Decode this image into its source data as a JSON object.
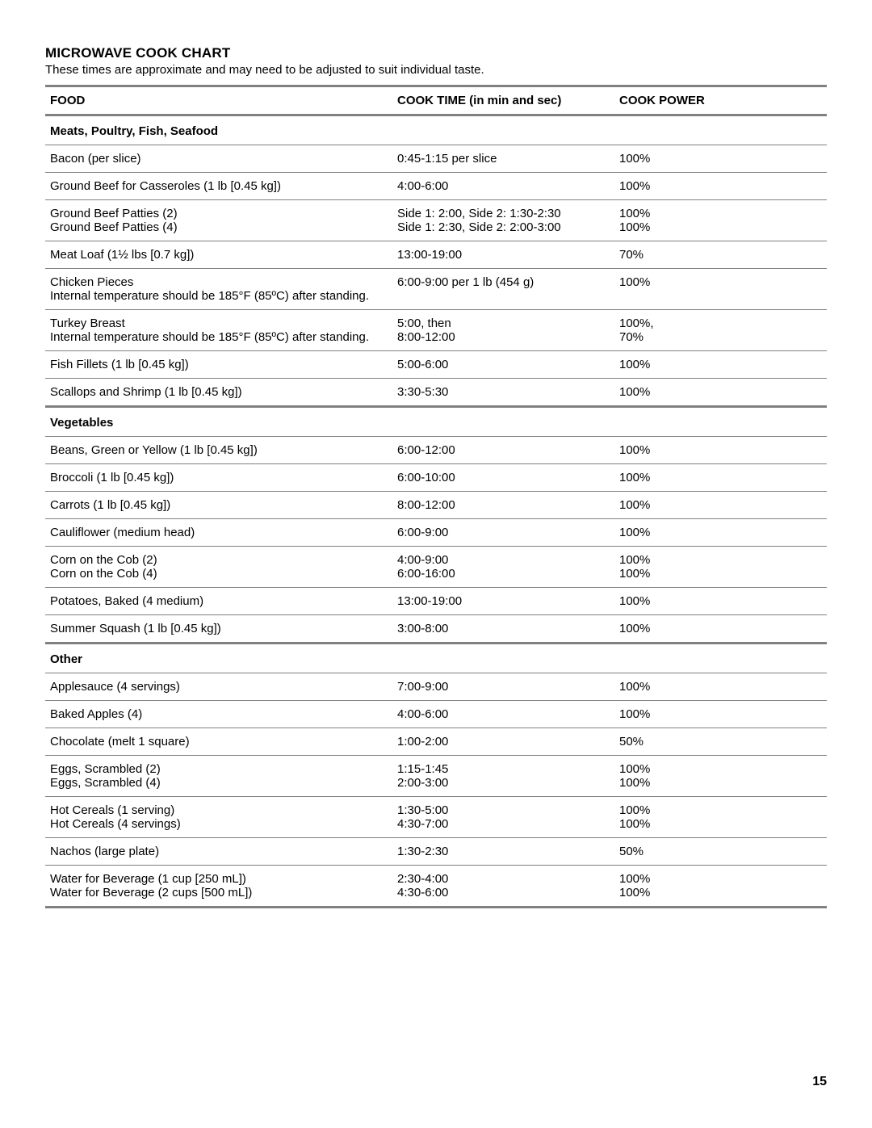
{
  "title": "MICROWAVE COOK CHART",
  "subtitle": "These times are approximate and may need to be adjusted to suit individual taste.",
  "page_number": "15",
  "colors": {
    "rule": "#808080",
    "text": "#000000",
    "background": "#ffffff"
  },
  "columns": {
    "food": "FOOD",
    "time": "COOK TIME (in min and sec)",
    "power": "COOK POWER"
  },
  "sections": [
    {
      "label": "Meats, Poultry, Fish, Seafood",
      "rows": [
        {
          "food": [
            "Bacon (per slice)"
          ],
          "time": [
            "0:45-1:15 per slice"
          ],
          "power": [
            "100%"
          ]
        },
        {
          "food": [
            "Ground Beef for Casseroles (1 lb [0.45 kg])"
          ],
          "time": [
            "4:00-6:00"
          ],
          "power": [
            "100%"
          ]
        },
        {
          "food": [
            "Ground Beef Patties (2)",
            "Ground Beef Patties (4)"
          ],
          "time": [
            "Side 1: 2:00, Side 2: 1:30-2:30",
            "Side 1: 2:30, Side 2: 2:00-3:00"
          ],
          "power": [
            "100%",
            "100%"
          ]
        },
        {
          "food": [
            "Meat Loaf (1½ lbs [0.7 kg])"
          ],
          "time": [
            "13:00-19:00"
          ],
          "power": [
            "70%"
          ]
        },
        {
          "food": [
            "Chicken Pieces",
            "Internal temperature should be 185°F (85ºC) after standing."
          ],
          "time": [
            "6:00-9:00 per 1 lb (454 g)"
          ],
          "power": [
            "100%"
          ]
        },
        {
          "food": [
            "Turkey Breast",
            "Internal temperature should be 185°F (85ºC) after standing."
          ],
          "time": [
            "5:00, then",
            "8:00-12:00"
          ],
          "power": [
            "100%,",
            "70%"
          ]
        },
        {
          "food": [
            "Fish Fillets (1 lb [0.45 kg])"
          ],
          "time": [
            "5:00-6:00"
          ],
          "power": [
            "100%"
          ]
        },
        {
          "food": [
            "Scallops and Shrimp (1 lb [0.45 kg])"
          ],
          "time": [
            "3:30-5:30"
          ],
          "power": [
            "100%"
          ]
        }
      ]
    },
    {
      "label": "Vegetables",
      "rows": [
        {
          "food": [
            "Beans, Green or Yellow (1 lb [0.45 kg])"
          ],
          "time": [
            "6:00-12:00"
          ],
          "power": [
            "100%"
          ]
        },
        {
          "food": [
            "Broccoli (1 lb [0.45 kg])"
          ],
          "time": [
            "6:00-10:00"
          ],
          "power": [
            "100%"
          ]
        },
        {
          "food": [
            "Carrots (1 lb [0.45 kg])"
          ],
          "time": [
            "8:00-12:00"
          ],
          "power": [
            "100%"
          ]
        },
        {
          "food": [
            "Cauliflower (medium head)"
          ],
          "time": [
            "6:00-9:00"
          ],
          "power": [
            "100%"
          ]
        },
        {
          "food": [
            "Corn on the Cob (2)",
            "Corn on the Cob (4)"
          ],
          "time": [
            "4:00-9:00",
            "6:00-16:00"
          ],
          "power": [
            "100%",
            "100%"
          ]
        },
        {
          "food": [
            "Potatoes, Baked (4 medium)"
          ],
          "time": [
            "13:00-19:00"
          ],
          "power": [
            "100%"
          ]
        },
        {
          "food": [
            "Summer Squash (1 lb [0.45 kg])"
          ],
          "time": [
            "3:00-8:00"
          ],
          "power": [
            "100%"
          ]
        }
      ]
    },
    {
      "label": "Other",
      "rows": [
        {
          "food": [
            "Applesauce (4 servings)"
          ],
          "time": [
            "7:00-9:00"
          ],
          "power": [
            "100%"
          ]
        },
        {
          "food": [
            "Baked Apples (4)"
          ],
          "time": [
            "4:00-6:00"
          ],
          "power": [
            "100%"
          ]
        },
        {
          "food": [
            "Chocolate (melt 1 square)"
          ],
          "time": [
            "1:00-2:00"
          ],
          "power": [
            "50%"
          ]
        },
        {
          "food": [
            "Eggs, Scrambled (2)",
            "Eggs, Scrambled (4)"
          ],
          "time": [
            "1:15-1:45",
            "2:00-3:00"
          ],
          "power": [
            "100%",
            "100%"
          ]
        },
        {
          "food": [
            "Hot Cereals (1 serving)",
            "Hot Cereals (4 servings)"
          ],
          "time": [
            "1:30-5:00",
            "4:30-7:00"
          ],
          "power": [
            "100%",
            "100%"
          ]
        },
        {
          "food": [
            "Nachos (large plate)"
          ],
          "time": [
            "1:30-2:30"
          ],
          "power": [
            "50%"
          ]
        },
        {
          "food": [
            "Water for Beverage (1 cup [250 mL])",
            "Water for Beverage (2 cups [500 mL])"
          ],
          "time": [
            "2:30-4:00",
            "4:30-6:00"
          ],
          "power": [
            "100%",
            "100%"
          ]
        }
      ]
    }
  ]
}
